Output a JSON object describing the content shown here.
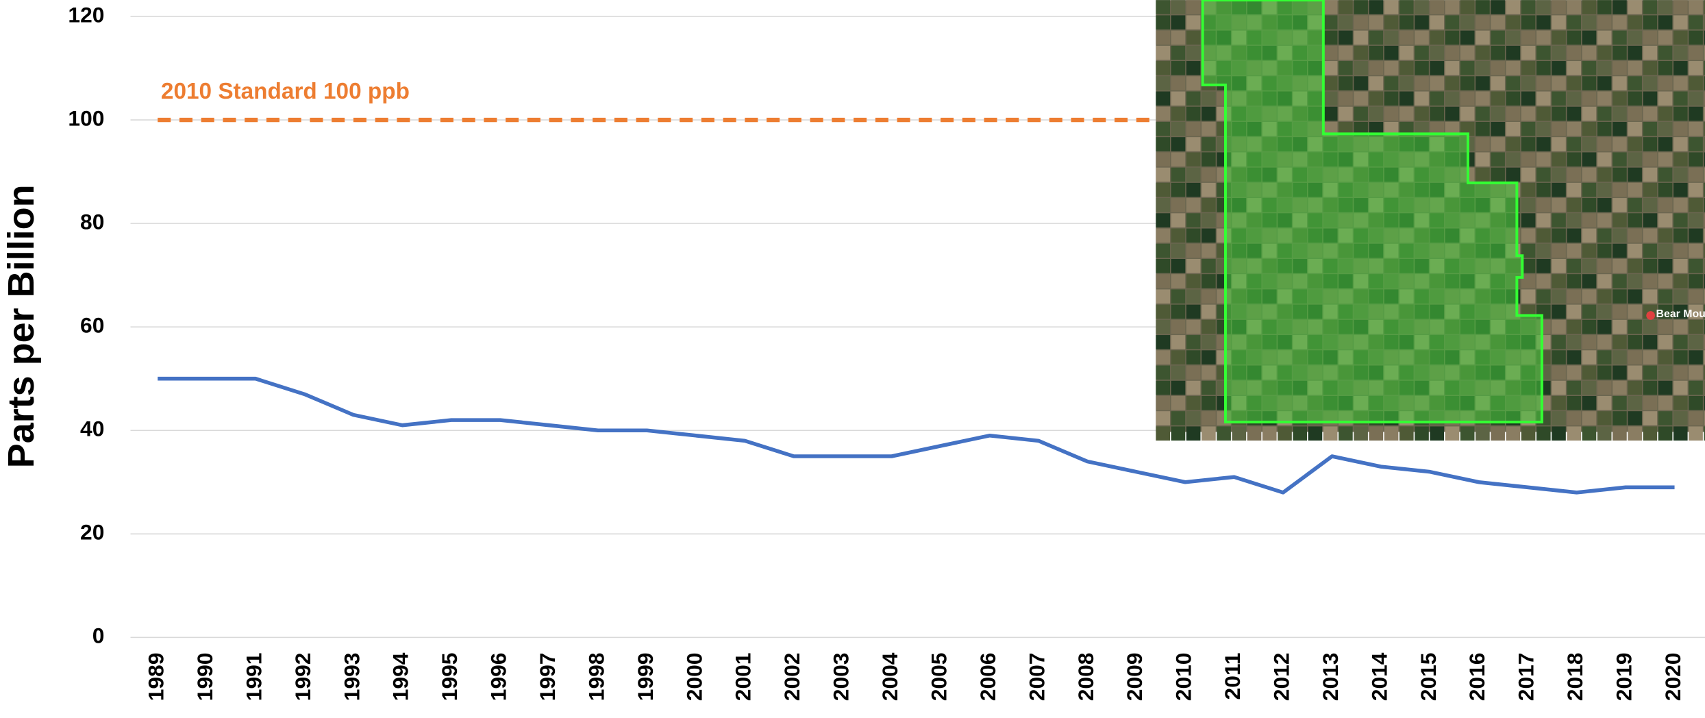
{
  "chart_data": {
    "type": "line",
    "y_label": "Parts per Billion",
    "categories": [
      "1989",
      "1990",
      "1991",
      "1992",
      "1993",
      "1994",
      "1995",
      "1996",
      "1997",
      "1998",
      "1999",
      "2000",
      "2001",
      "2002",
      "2003",
      "2004",
      "2005",
      "2006",
      "2007",
      "2008",
      "2009",
      "2010",
      "2011",
      "2012",
      "2013",
      "2014",
      "2015",
      "2016",
      "2017",
      "2018",
      "2019",
      "2020"
    ],
    "series": [
      {
        "color": "#4472c4",
        "values": [
          50,
          50,
          50,
          47,
          43,
          41,
          42,
          42,
          41,
          40,
          40,
          39,
          38,
          35,
          35,
          35,
          37,
          39,
          38,
          34,
          32,
          30,
          31,
          28,
          35,
          33,
          32,
          30,
          29,
          28,
          29,
          29
        ]
      }
    ],
    "reference_line": {
      "value": 100,
      "label": "2010 Standard 100 ppb",
      "color": "#ed7d31"
    },
    "ylim": [
      0,
      120
    ],
    "yticks": [
      0,
      20,
      40,
      60,
      80,
      100,
      120
    ],
    "grid": true,
    "map_label": "Bear Mou"
  }
}
